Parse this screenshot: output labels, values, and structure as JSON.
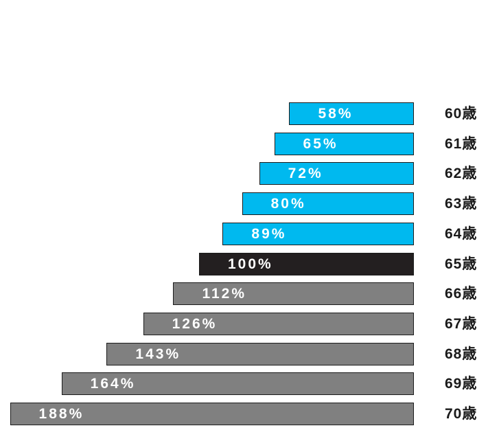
{
  "chart_data": {
    "type": "bar",
    "orientation": "horizontal",
    "categories": [
      "60歳",
      "61歳",
      "62歳",
      "63歳",
      "64歳",
      "65歳",
      "66歳",
      "67歳",
      "68歳",
      "69歳",
      "70歳"
    ],
    "values": [
      58,
      65,
      72,
      80,
      89,
      100,
      112,
      126,
      143,
      164,
      188
    ],
    "value_labels": [
      "58%",
      "65%",
      "72%",
      "80%",
      "89%",
      "100%",
      "112%",
      "126%",
      "143%",
      "164%",
      "188%"
    ],
    "unit": "%",
    "title": "",
    "xlabel": "",
    "ylabel": "",
    "colors": {
      "early": "#00b9ef",
      "standard": "#231f20",
      "deferred": "#808080",
      "bar_border": "#1a1a1a",
      "value_text": "#ffffff",
      "category_text": "#1a1a1a"
    },
    "grid": false,
    "legend": "none"
  }
}
